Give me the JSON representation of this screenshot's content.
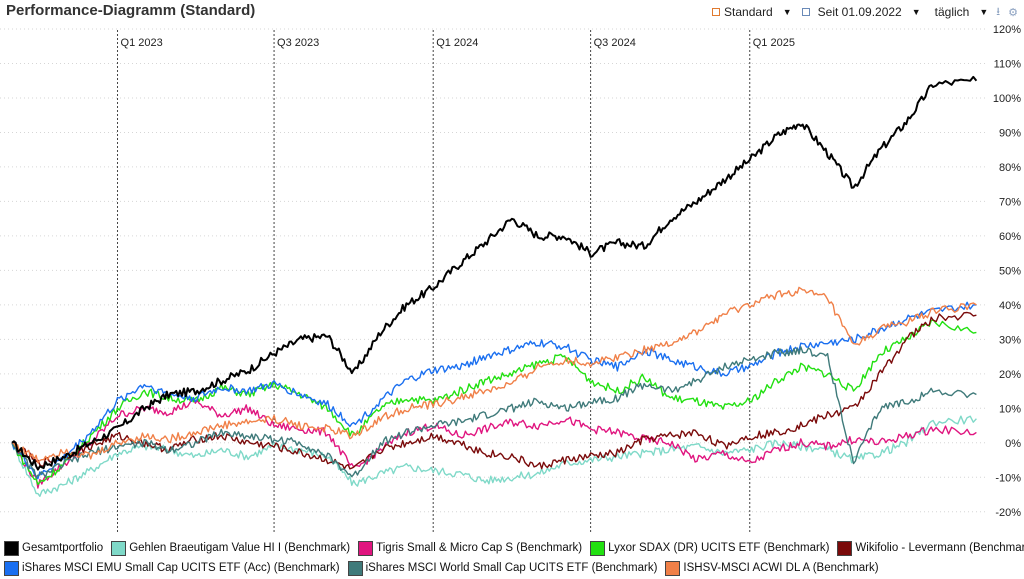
{
  "header": {
    "title": "Performance-Diagramm (Standard)",
    "view_select": "Standard",
    "since_label": "Seit 01.09.2022",
    "interval_select": "täglich",
    "icons": [
      "square-icon",
      "chevron-down-icon",
      "calendar-icon",
      "chevron-down-icon",
      "chevron-down-icon",
      "download-icon",
      "gear-icon"
    ]
  },
  "chart_data": {
    "type": "line",
    "title": "",
    "xlabel": "",
    "ylabel": "",
    "x_range": [
      "2022-09-01",
      "2025-09-30"
    ],
    "ylim": [
      -25,
      120
    ],
    "y_ticks": [
      -20,
      -10,
      0,
      10,
      20,
      30,
      40,
      50,
      60,
      70,
      80,
      90,
      100,
      110,
      120
    ],
    "y_tick_labels": [
      "-20%",
      "-10%",
      "0%",
      "10%",
      "20%",
      "30%",
      "40%",
      "50%",
      "60%",
      "70%",
      "80%",
      "90%",
      "100%",
      "110%",
      "120%"
    ],
    "x_markers": [
      {
        "date": "2023-01-01",
        "label": "Q1 2023"
      },
      {
        "date": "2023-07-01",
        "label": "Q3 2023"
      },
      {
        "date": "2024-01-01",
        "label": "Q1 2024"
      },
      {
        "date": "2024-07-01",
        "label": "Q3 2024"
      },
      {
        "date": "2025-01-01",
        "label": "Q1 2025"
      }
    ],
    "grid": true,
    "legend_position": "bottom",
    "series": [
      {
        "name": "Gesamtportfolio",
        "color": "#000000",
        "x": [
          "2022-09-01",
          "2022-10-01",
          "2022-11-01",
          "2022-12-01",
          "2023-01-01",
          "2023-02-01",
          "2023-03-01",
          "2023-04-01",
          "2023-05-01",
          "2023-06-01",
          "2023-07-01",
          "2023-08-01",
          "2023-09-01",
          "2023-10-01",
          "2023-11-01",
          "2023-12-01",
          "2024-01-01",
          "2024-02-01",
          "2024-03-01",
          "2024-04-01",
          "2024-05-01",
          "2024-06-01",
          "2024-07-01",
          "2024-08-01",
          "2024-09-01",
          "2024-10-01",
          "2024-11-01",
          "2024-12-01",
          "2025-01-01",
          "2025-02-01",
          "2025-03-01",
          "2025-04-01",
          "2025-05-01",
          "2025-06-01",
          "2025-07-01",
          "2025-08-01",
          "2025-09-20"
        ],
        "y": [
          0,
          -7,
          -4,
          0,
          4,
          10,
          14,
          15,
          18,
          21,
          26,
          30,
          31,
          20,
          32,
          40,
          45,
          52,
          58,
          65,
          60,
          60,
          55,
          58,
          57,
          65,
          70,
          76,
          82,
          89,
          93,
          84,
          74,
          85,
          93,
          104,
          105
        ]
      },
      {
        "name": "Gehlen Braeutigam Value HI I (Benchmark)",
        "color": "#7fd9c8",
        "x": [
          "2022-09-01",
          "2022-10-01",
          "2022-11-01",
          "2022-12-01",
          "2023-01-01",
          "2023-02-01",
          "2023-03-01",
          "2023-04-01",
          "2023-05-01",
          "2023-06-01",
          "2023-07-01",
          "2023-08-01",
          "2023-09-01",
          "2023-10-01",
          "2023-11-01",
          "2023-12-01",
          "2024-01-01",
          "2024-02-01",
          "2024-03-01",
          "2024-04-01",
          "2024-05-01",
          "2024-06-01",
          "2024-07-01",
          "2024-08-01",
          "2024-09-01",
          "2024-10-01",
          "2024-11-01",
          "2024-12-01",
          "2025-01-01",
          "2025-02-01",
          "2025-03-01",
          "2025-04-01",
          "2025-05-01",
          "2025-06-01",
          "2025-07-01",
          "2025-08-01",
          "2025-09-20"
        ],
        "y": [
          0,
          -15,
          -12,
          -8,
          -3,
          -1,
          -2,
          -4,
          -2,
          -4,
          -1,
          -2,
          -4,
          -12,
          -9,
          -7,
          -8,
          -9,
          -11,
          -10,
          -9,
          -6,
          -5,
          -4,
          -3,
          -2,
          -1,
          -3,
          -2,
          0,
          -1,
          -2,
          -5,
          -3,
          0,
          6,
          7
        ]
      },
      {
        "name": "Tigris Small & Micro Cap S (Benchmark)",
        "color": "#e0157f",
        "x": [
          "2022-09-01",
          "2022-10-01",
          "2022-11-01",
          "2022-12-01",
          "2023-01-01",
          "2023-02-01",
          "2023-03-01",
          "2023-04-01",
          "2023-05-01",
          "2023-06-01",
          "2023-07-01",
          "2023-08-01",
          "2023-09-01",
          "2023-10-01",
          "2023-11-01",
          "2023-12-01",
          "2024-01-01",
          "2024-02-01",
          "2024-03-01",
          "2024-04-01",
          "2024-05-01",
          "2024-06-01",
          "2024-07-01",
          "2024-08-01",
          "2024-09-01",
          "2024-10-01",
          "2024-11-01",
          "2024-12-01",
          "2025-01-01",
          "2025-02-01",
          "2025-03-01",
          "2025-04-01",
          "2025-05-01",
          "2025-06-01",
          "2025-07-01",
          "2025-08-01",
          "2025-09-20"
        ],
        "y": [
          0,
          -12,
          -6,
          0,
          8,
          10,
          9,
          12,
          8,
          10,
          5,
          4,
          3,
          -8,
          -2,
          3,
          5,
          2,
          4,
          6,
          5,
          7,
          4,
          3,
          1,
          0,
          -5,
          -3,
          -6,
          -2,
          0,
          -1,
          1,
          0,
          2,
          4,
          3
        ]
      },
      {
        "name": "Lyxor SDAX (DR) UCITS ETF (Benchmark)",
        "color": "#22e011",
        "x": [
          "2022-09-01",
          "2022-10-01",
          "2022-11-01",
          "2022-12-01",
          "2023-01-01",
          "2023-02-01",
          "2023-03-01",
          "2023-04-01",
          "2023-05-01",
          "2023-06-01",
          "2023-07-01",
          "2023-08-01",
          "2023-09-01",
          "2023-10-01",
          "2023-11-01",
          "2023-12-01",
          "2024-01-01",
          "2024-02-01",
          "2024-03-01",
          "2024-04-01",
          "2024-05-01",
          "2024-06-01",
          "2024-07-01",
          "2024-08-01",
          "2024-09-01",
          "2024-10-01",
          "2024-11-01",
          "2024-12-01",
          "2025-01-01",
          "2025-02-01",
          "2025-03-01",
          "2025-04-01",
          "2025-05-01",
          "2025-06-01",
          "2025-07-01",
          "2025-08-01",
          "2025-09-20"
        ],
        "y": [
          0,
          -12,
          -6,
          2,
          10,
          15,
          13,
          12,
          16,
          14,
          17,
          14,
          10,
          2,
          10,
          13,
          12,
          15,
          18,
          20,
          23,
          25,
          18,
          15,
          19,
          13,
          12,
          10,
          12,
          18,
          22,
          20,
          15,
          26,
          30,
          35,
          32
        ]
      },
      {
        "name": "Wikifolio - Levermann (Benchmark)",
        "color": "#7a0a0a",
        "x": [
          "2022-09-01",
          "2022-10-01",
          "2022-11-01",
          "2022-12-01",
          "2023-01-01",
          "2023-02-01",
          "2023-03-01",
          "2023-04-01",
          "2023-05-01",
          "2023-06-01",
          "2023-07-01",
          "2023-08-01",
          "2023-09-01",
          "2023-10-01",
          "2023-11-01",
          "2023-12-01",
          "2024-01-01",
          "2024-02-01",
          "2024-03-01",
          "2024-04-01",
          "2024-05-01",
          "2024-06-01",
          "2024-07-01",
          "2024-08-01",
          "2024-09-01",
          "2024-10-01",
          "2024-11-01",
          "2024-12-01",
          "2025-01-01",
          "2025-02-01",
          "2025-03-01",
          "2025-04-01",
          "2025-05-01",
          "2025-06-01",
          "2025-07-01",
          "2025-08-01",
          "2025-09-20"
        ],
        "y": [
          0,
          -6,
          -4,
          -1,
          2,
          0,
          -2,
          1,
          2,
          0,
          -1,
          -3,
          -5,
          -8,
          -2,
          0,
          2,
          0,
          -3,
          -4,
          -7,
          -5,
          -4,
          -3,
          1,
          2,
          3,
          -1,
          2,
          3,
          5,
          8,
          10,
          20,
          30,
          36,
          37
        ]
      },
      {
        "name": "iShares MSCI EMU Small Cap UCITS ETF (Acc) (Benchmark)",
        "color": "#1a6ff0",
        "x": [
          "2022-09-01",
          "2022-10-01",
          "2022-11-01",
          "2022-12-01",
          "2023-01-01",
          "2023-02-01",
          "2023-03-01",
          "2023-04-01",
          "2023-05-01",
          "2023-06-01",
          "2023-07-01",
          "2023-08-01",
          "2023-09-01",
          "2023-10-01",
          "2023-11-01",
          "2023-12-01",
          "2024-01-01",
          "2024-02-01",
          "2024-03-01",
          "2024-04-01",
          "2024-05-01",
          "2024-06-01",
          "2024-07-01",
          "2024-08-01",
          "2024-09-01",
          "2024-10-01",
          "2024-11-01",
          "2024-12-01",
          "2025-01-01",
          "2025-02-01",
          "2025-03-01",
          "2025-04-01",
          "2025-05-01",
          "2025-06-01",
          "2025-07-01",
          "2025-08-01",
          "2025-09-20"
        ],
        "y": [
          0,
          -10,
          -4,
          3,
          12,
          17,
          14,
          13,
          16,
          15,
          17,
          14,
          11,
          5,
          12,
          18,
          21,
          22,
          25,
          27,
          29,
          28,
          24,
          22,
          27,
          24,
          22,
          20,
          22,
          26,
          28,
          29,
          30,
          33,
          36,
          38,
          40
        ]
      },
      {
        "name": "iShares MSCI World Small Cap UCITS ETF (Benchmark)",
        "color": "#3f7a7a",
        "x": [
          "2022-09-01",
          "2022-10-01",
          "2022-11-01",
          "2022-12-01",
          "2023-01-01",
          "2023-02-01",
          "2023-03-01",
          "2023-04-01",
          "2023-05-01",
          "2023-06-01",
          "2023-07-01",
          "2023-08-01",
          "2023-09-01",
          "2023-10-01",
          "2023-11-01",
          "2023-12-01",
          "2024-01-01",
          "2024-02-01",
          "2024-03-01",
          "2024-04-01",
          "2024-05-01",
          "2024-06-01",
          "2024-07-01",
          "2024-08-01",
          "2024-09-01",
          "2024-10-01",
          "2024-11-01",
          "2024-12-01",
          "2025-01-01",
          "2025-02-01",
          "2025-03-01",
          "2025-04-01",
          "2025-05-01",
          "2025-06-01",
          "2025-07-01",
          "2025-08-01",
          "2025-09-20"
        ],
        "y": [
          0,
          -10,
          -6,
          -3,
          -1,
          0,
          -2,
          0,
          3,
          2,
          1,
          0,
          -4,
          -10,
          0,
          3,
          5,
          6,
          8,
          10,
          12,
          10,
          12,
          13,
          17,
          15,
          18,
          22,
          24,
          26,
          27,
          25,
          -6,
          10,
          12,
          15,
          14
        ]
      },
      {
        "name": "ISHSV-MSCI ACWI DL A (Benchmark)",
        "color": "#f08048",
        "x": [
          "2022-09-01",
          "2022-10-01",
          "2022-11-01",
          "2022-12-01",
          "2023-01-01",
          "2023-02-01",
          "2023-03-01",
          "2023-04-01",
          "2023-05-01",
          "2023-06-01",
          "2023-07-01",
          "2023-08-01",
          "2023-09-01",
          "2023-10-01",
          "2023-11-01",
          "2023-12-01",
          "2024-01-01",
          "2024-02-01",
          "2024-03-01",
          "2024-04-01",
          "2024-05-01",
          "2024-06-01",
          "2024-07-01",
          "2024-08-01",
          "2024-09-01",
          "2024-10-01",
          "2024-11-01",
          "2024-12-01",
          "2025-01-01",
          "2025-02-01",
          "2025-03-01",
          "2025-04-01",
          "2025-05-01",
          "2025-06-01",
          "2025-07-01",
          "2025-08-01",
          "2025-09-20"
        ],
        "y": [
          0,
          -5,
          -2,
          -4,
          0,
          2,
          1,
          3,
          5,
          6,
          7,
          5,
          4,
          2,
          7,
          10,
          11,
          13,
          15,
          17,
          22,
          24,
          23,
          25,
          27,
          29,
          32,
          37,
          40,
          43,
          44,
          42,
          28,
          33,
          35,
          38,
          40
        ]
      }
    ]
  }
}
